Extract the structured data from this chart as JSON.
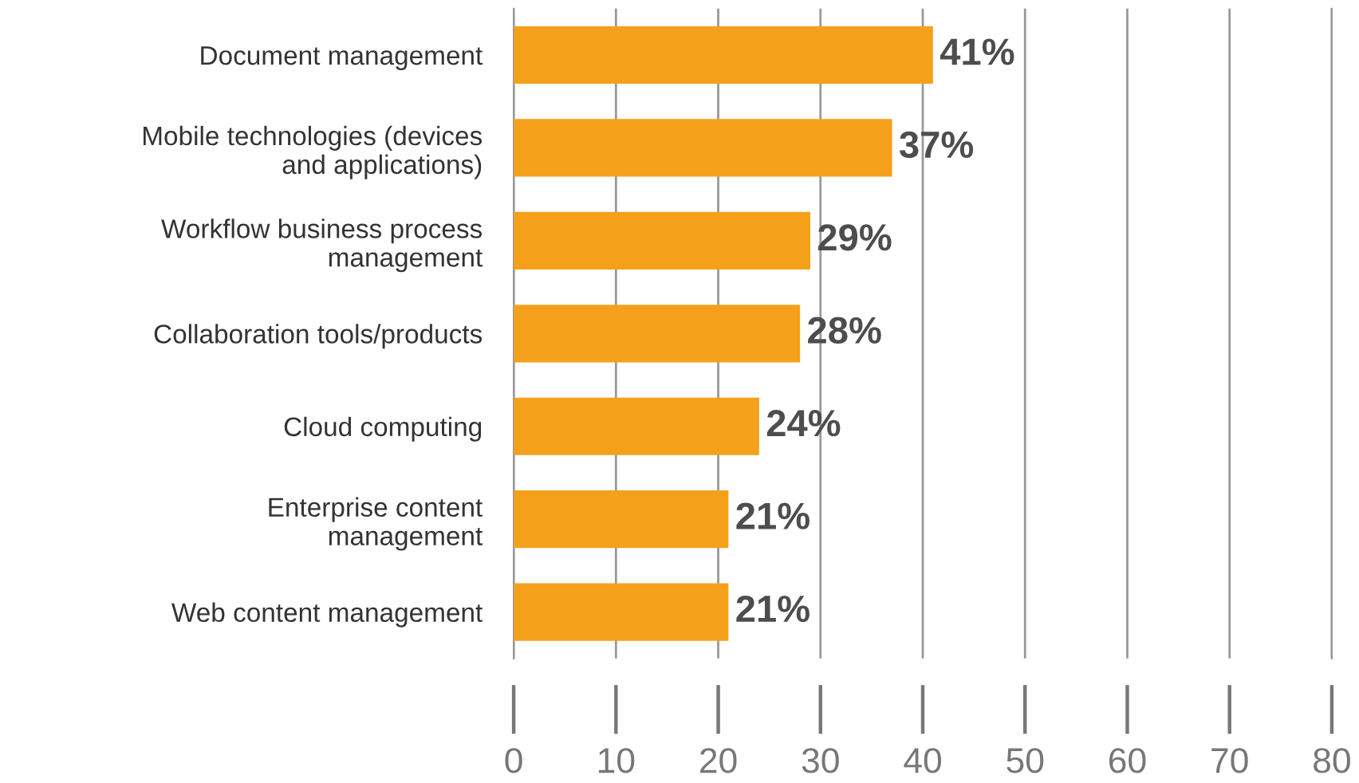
{
  "chart_data": {
    "type": "bar",
    "orientation": "horizontal",
    "categories": [
      "Document management",
      "Mobile technologies (devices\nand applications)",
      "Workflow business process\nmanagement",
      "Collaboration tools/products",
      "Cloud computing",
      "Enterprise content\nmanagement",
      "Web content management"
    ],
    "values": [
      41,
      37,
      29,
      28,
      24,
      21,
      21
    ],
    "value_labels": [
      "41%",
      "37%",
      "29%",
      "28%",
      "24%",
      "21%",
      "21%"
    ],
    "color": "#f5a01a",
    "xlim": [
      0,
      80
    ],
    "xticks": [
      0,
      10,
      20,
      30,
      40,
      50,
      60,
      70,
      80
    ],
    "grid": "x",
    "legend": false
  }
}
